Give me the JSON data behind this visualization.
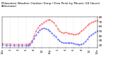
{
  "title": "Milwaukee Weather Outdoor Temp / Dew Point by Minute (24 Hours) (Alternate)",
  "background_color": "#ffffff",
  "plot_bg_color": "#ffffff",
  "grid_color": "#c0c0c0",
  "ylim": [
    15,
    80
  ],
  "xlim": [
    0,
    1439
  ],
  "ylabel_fontsize": 3.0,
  "xlabel_fontsize": 2.8,
  "title_fontsize": 3.0,
  "temp_color": "#ff0000",
  "dew_color": "#0000ff",
  "temp_data": [
    [
      0,
      24
    ],
    [
      60,
      23
    ],
    [
      120,
      23
    ],
    [
      180,
      22
    ],
    [
      240,
      22
    ],
    [
      300,
      22
    ],
    [
      360,
      22
    ],
    [
      390,
      22
    ],
    [
      420,
      24
    ],
    [
      450,
      30
    ],
    [
      480,
      40
    ],
    [
      510,
      50
    ],
    [
      540,
      57
    ],
    [
      570,
      62
    ],
    [
      600,
      66
    ],
    [
      630,
      69
    ],
    [
      660,
      72
    ],
    [
      690,
      74
    ],
    [
      720,
      74
    ],
    [
      750,
      72
    ],
    [
      780,
      68
    ],
    [
      810,
      62
    ],
    [
      840,
      55
    ],
    [
      870,
      50
    ],
    [
      900,
      47
    ],
    [
      930,
      46
    ],
    [
      960,
      47
    ],
    [
      990,
      46
    ],
    [
      1020,
      45
    ],
    [
      1050,
      44
    ],
    [
      1080,
      43
    ],
    [
      1110,
      43
    ],
    [
      1140,
      44
    ],
    [
      1170,
      46
    ],
    [
      1200,
      50
    ],
    [
      1230,
      54
    ],
    [
      1260,
      58
    ],
    [
      1290,
      62
    ],
    [
      1320,
      66
    ],
    [
      1350,
      68
    ],
    [
      1380,
      70
    ],
    [
      1410,
      72
    ],
    [
      1439,
      73
    ]
  ],
  "dew_data": [
    [
      0,
      21
    ],
    [
      60,
      20
    ],
    [
      120,
      20
    ],
    [
      180,
      19
    ],
    [
      240,
      19
    ],
    [
      300,
      19
    ],
    [
      360,
      19
    ],
    [
      390,
      19
    ],
    [
      420,
      21
    ],
    [
      450,
      26
    ],
    [
      480,
      34
    ],
    [
      510,
      42
    ],
    [
      540,
      48
    ],
    [
      570,
      52
    ],
    [
      600,
      55
    ],
    [
      630,
      56
    ],
    [
      660,
      55
    ],
    [
      690,
      53
    ],
    [
      720,
      50
    ],
    [
      750,
      46
    ],
    [
      780,
      42
    ],
    [
      810,
      38
    ],
    [
      840,
      33
    ],
    [
      870,
      29
    ],
    [
      900,
      26
    ],
    [
      930,
      25
    ],
    [
      960,
      25
    ],
    [
      990,
      25
    ],
    [
      1020,
      25
    ],
    [
      1050,
      25
    ],
    [
      1080,
      24
    ],
    [
      1110,
      23
    ],
    [
      1140,
      22
    ],
    [
      1170,
      21
    ],
    [
      1200,
      22
    ],
    [
      1230,
      24
    ],
    [
      1260,
      28
    ],
    [
      1290,
      33
    ],
    [
      1320,
      38
    ],
    [
      1350,
      42
    ],
    [
      1380,
      45
    ],
    [
      1410,
      48
    ],
    [
      1439,
      50
    ]
  ],
  "yticks": [
    20,
    30,
    40,
    50,
    60,
    70,
    80
  ],
  "xtick_labels": [
    "12a",
    "2",
    "4",
    "6",
    "8",
    "10",
    "12p",
    "2",
    "4",
    "6",
    "8",
    "10",
    "12a"
  ],
  "xtick_positions": [
    0,
    120,
    240,
    360,
    480,
    600,
    720,
    840,
    960,
    1080,
    1200,
    1320,
    1439
  ]
}
